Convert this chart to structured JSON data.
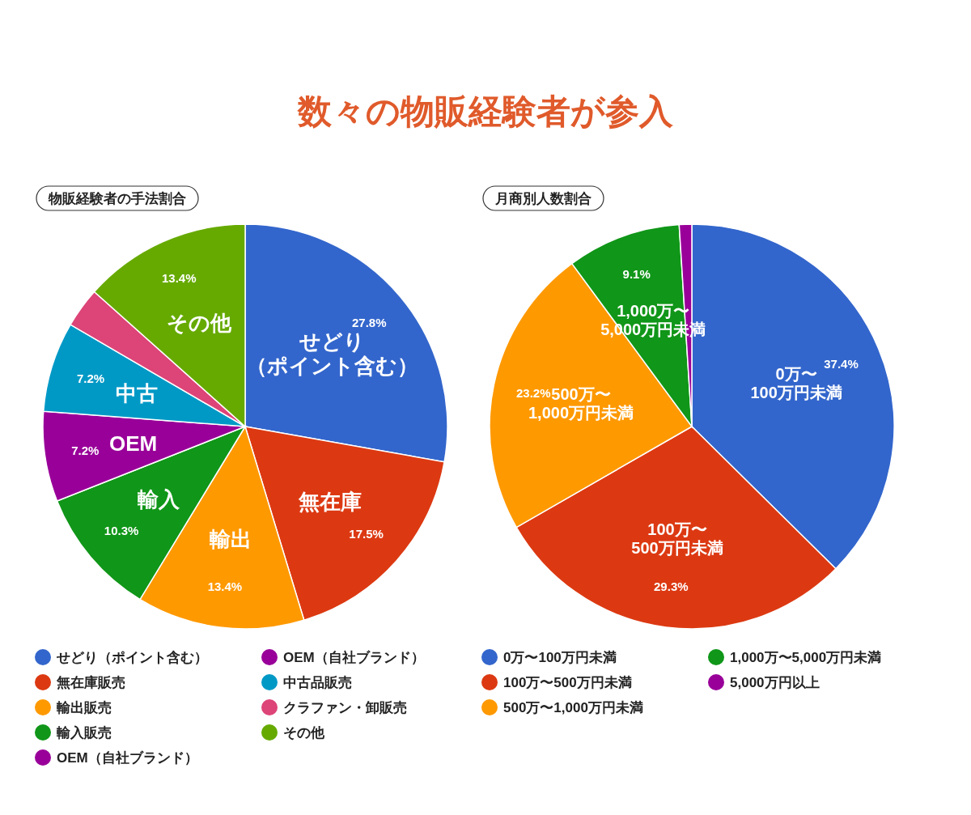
{
  "chart_data": [
    {
      "type": "pie",
      "title": "数々の物販経験者が参入",
      "subtitle": "物販経験者の手法割合",
      "legend": "bottom",
      "categories": [
        "せどり（ポイント含む）",
        "無在庫販売",
        "輸出販売",
        "輸入販売",
        "OEM（自社ブランド）",
        "OEM（自社ブランド）",
        "中古品販売",
        "クラファン・卸販売",
        "その他"
      ],
      "values": [
        27.8,
        17.5,
        13.4,
        10.3,
        7.2,
        0,
        7.2,
        3.2,
        13.4
      ],
      "colors": [
        "#3366cc",
        "#dc3912",
        "#ff9900",
        "#109618",
        "#990099",
        "#990099",
        "#0099c6",
        "#dd4477",
        "#66aa00"
      ],
      "value_labels": [
        "27.8%",
        "17.5%",
        "13.4%",
        "10.3%",
        "7.2%",
        null,
        "7.2%",
        null,
        "13.4%"
      ],
      "annotations": [
        {
          "text": "せどり（ポイント含む）",
          "x": "せどり（ポイント含む）"
        },
        {
          "text": "無在庫",
          "x": "無在庫販売"
        },
        {
          "text": "輸出",
          "x": "輸出販売"
        },
        {
          "text": "輸入",
          "x": "輸入販売"
        },
        {
          "text": "OEM",
          "x": "OEM（自社ブランド）"
        },
        {
          "text": "中古",
          "x": "中古品販売"
        },
        {
          "text": "その他",
          "x": "その他"
        }
      ]
    },
    {
      "type": "pie",
      "subtitle": "月商別人数割合",
      "legend": "bottom",
      "categories": [
        "0万〜100万円未満",
        "100万〜500万円未満",
        "500万〜1,000万円未満",
        "1,000万〜5,000万円未満",
        "5,000万円以上"
      ],
      "values": [
        37.4,
        29.3,
        23.2,
        9.1,
        1.0
      ],
      "colors": [
        "#3366cc",
        "#dc3912",
        "#ff9900",
        "#109618",
        "#990099"
      ],
      "value_labels": [
        "37.4%",
        "29.3%",
        "23.2%",
        "9.1%",
        null
      ],
      "annotations": [
        {
          "text": "0万〜100万円未満",
          "x": "0万〜100万円未満"
        },
        {
          "text": "100万〜500万円未満",
          "x": "100万〜500万円未満"
        },
        {
          "text": "500万〜1,000万円未満",
          "x": "500万〜1,000万円未満"
        },
        {
          "text": "1,000万〜5,000万円未満",
          "x": "1,000万〜5,000万円未満"
        }
      ]
    }
  ]
}
